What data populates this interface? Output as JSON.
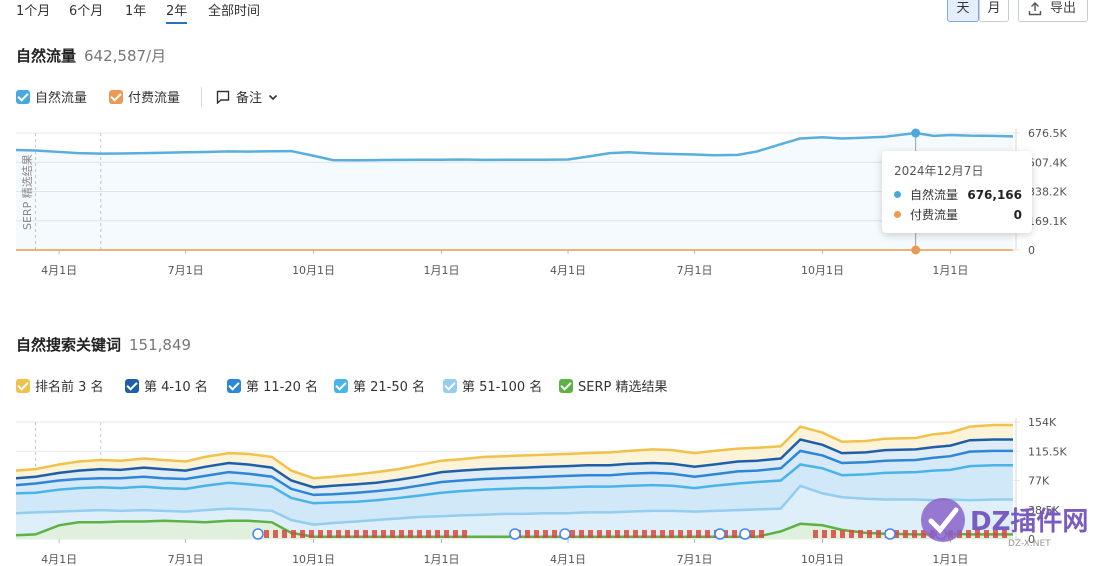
{
  "range_tabs": [
    "1个月",
    "6个月",
    "1年",
    "2年",
    "全部时间"
  ],
  "range_active": "2年",
  "granularity": {
    "day": "天",
    "month": "月",
    "active": "天"
  },
  "export_label": "导出",
  "organic": {
    "title": "自然流量",
    "value": "642,587/月",
    "legend": [
      {
        "label": "自然流量",
        "color": "#49a9de"
      },
      {
        "label": "付费流量",
        "color": "#ea9a52"
      }
    ],
    "notes_label": "备注",
    "serp_marker_label": "SERP 精选结果"
  },
  "tooltip": {
    "date": "2024年12月7日",
    "rows": [
      {
        "label": "自然流量",
        "value": "676,166",
        "color": "#49a9de"
      },
      {
        "label": "付费流量",
        "value": "0",
        "color": "#ea9a52"
      }
    ]
  },
  "keywords": {
    "title": "自然搜索关键词",
    "value": "151,849",
    "legend": [
      {
        "label": "排名前 3 名",
        "color": "#f0c24b"
      },
      {
        "label": "第 4-10 名",
        "color": "#1f5fa8"
      },
      {
        "label": "第 11-20 名",
        "color": "#2d86d6"
      },
      {
        "label": "第 21-50 名",
        "color": "#49b4e8"
      },
      {
        "label": "第 51-100 名",
        "color": "#93cdef"
      },
      {
        "label": "SERP 精选结果",
        "color": "#5cb245"
      }
    ]
  },
  "watermark": {
    "brand": "DZ插件网",
    "sub": "DZ-X.NET"
  },
  "chart_data": [
    {
      "type": "area",
      "x": [
        "2023-03-01",
        "2023-03-15",
        "2023-04-01",
        "2023-04-15",
        "2023-05-01",
        "2023-05-15",
        "2023-06-01",
        "2023-06-15",
        "2023-07-01",
        "2023-07-15",
        "2023-08-01",
        "2023-08-15",
        "2023-09-01",
        "2023-09-15",
        "2023-10-01",
        "2023-10-15",
        "2023-11-01",
        "2023-11-15",
        "2023-12-01",
        "2023-12-15",
        "2024-01-01",
        "2024-01-15",
        "2024-02-01",
        "2024-02-15",
        "2024-03-01",
        "2024-03-15",
        "2024-04-01",
        "2024-04-15",
        "2024-05-01",
        "2024-05-15",
        "2024-06-01",
        "2024-06-15",
        "2024-07-01",
        "2024-07-15",
        "2024-08-01",
        "2024-08-15",
        "2024-09-01",
        "2024-09-15",
        "2024-10-01",
        "2024-10-15",
        "2024-11-01",
        "2024-11-15",
        "2024-12-07",
        "2024-12-20",
        "2025-01-01",
        "2025-01-15",
        "2025-02-01",
        "2025-02-15"
      ],
      "series": [
        {
          "name": "自然流量",
          "values": [
            578000,
            575000,
            567000,
            560000,
            557000,
            558000,
            560000,
            562000,
            565000,
            567000,
            570000,
            569000,
            571000,
            572000,
            545000,
            520000,
            519000,
            520000,
            521000,
            522000,
            522000,
            523000,
            521000,
            522000,
            522000,
            522000,
            523000,
            540000,
            560000,
            565000,
            558000,
            555000,
            552000,
            548000,
            550000,
            570000,
            612000,
            645000,
            652000,
            645000,
            650000,
            655000,
            676166,
            660000,
            665000,
            661000,
            660000,
            657000
          ]
        },
        {
          "name": "付费流量",
          "values": [
            0,
            0,
            0,
            0,
            0,
            0,
            0,
            0,
            0,
            0,
            0,
            0,
            0,
            0,
            0,
            0,
            0,
            0,
            0,
            0,
            0,
            0,
            0,
            0,
            0,
            0,
            0,
            0,
            0,
            0,
            0,
            0,
            0,
            0,
            0,
            0,
            0,
            0,
            0,
            0,
            0,
            0,
            0,
            0,
            0,
            0,
            0,
            0
          ]
        }
      ],
      "y_ticks": [
        "676.5K",
        "507.4K",
        "338.2K",
        "169.1K",
        "0"
      ],
      "x_ticks": [
        "4月1日",
        "7月1日",
        "10月1日",
        "1月1日",
        "4月1日",
        "7月1日",
        "10月1日",
        "1月1日"
      ],
      "ylim": [
        0,
        676500
      ],
      "grid": true
    },
    {
      "type": "area",
      "x": [
        "2023-03-01",
        "2023-03-15",
        "2023-04-01",
        "2023-04-15",
        "2023-05-01",
        "2023-05-15",
        "2023-06-01",
        "2023-06-15",
        "2023-07-01",
        "2023-07-15",
        "2023-08-01",
        "2023-08-15",
        "2023-09-01",
        "2023-09-15",
        "2023-10-01",
        "2023-10-15",
        "2023-11-01",
        "2023-11-15",
        "2023-12-01",
        "2023-12-15",
        "2024-01-01",
        "2024-01-15",
        "2024-02-01",
        "2024-02-15",
        "2024-03-01",
        "2024-03-15",
        "2024-04-01",
        "2024-04-15",
        "2024-05-01",
        "2024-05-15",
        "2024-06-01",
        "2024-06-15",
        "2024-07-01",
        "2024-07-15",
        "2024-08-01",
        "2024-08-15",
        "2024-09-01",
        "2024-09-15",
        "2024-10-01",
        "2024-10-15",
        "2024-11-01",
        "2024-11-15",
        "2024-12-07",
        "2024-12-20",
        "2025-01-01",
        "2025-01-15",
        "2025-02-01",
        "2025-02-15"
      ],
      "series": [
        {
          "name": "排名前 3 名",
          "values": [
            90000,
            92000,
            98000,
            102000,
            104000,
            103000,
            106000,
            104000,
            102000,
            108000,
            113000,
            112000,
            108000,
            90000,
            80000,
            82000,
            85000,
            88000,
            92000,
            97000,
            103000,
            105000,
            108000,
            109000,
            110000,
            111000,
            112000,
            113000,
            114000,
            116000,
            118000,
            117000,
            113000,
            116000,
            119000,
            120000,
            122000,
            148000,
            140000,
            128000,
            129000,
            132000,
            133000,
            138000,
            140000,
            148000,
            150000,
            150000
          ]
        },
        {
          "name": "第 4-10 名",
          "values": [
            80000,
            82000,
            87000,
            90000,
            92000,
            91000,
            94000,
            92000,
            90000,
            95000,
            100000,
            98000,
            94000,
            77000,
            68000,
            70000,
            72000,
            74000,
            78000,
            82000,
            88000,
            90000,
            92000,
            93000,
            94000,
            95000,
            96000,
            97000,
            97000,
            99000,
            100000,
            99000,
            95000,
            98000,
            102000,
            103000,
            106000,
            131000,
            124000,
            113000,
            114000,
            117000,
            118000,
            121000,
            123000,
            130000,
            131000,
            131000
          ]
        },
        {
          "name": "第 11-20 名",
          "values": [
            71000,
            73000,
            77000,
            79000,
            80000,
            80000,
            82000,
            80000,
            79000,
            83000,
            88000,
            86000,
            82000,
            66000,
            58000,
            59000,
            61000,
            63000,
            66000,
            70000,
            75000,
            77000,
            79000,
            80000,
            81000,
            82000,
            83000,
            84000,
            84000,
            86000,
            87000,
            86000,
            82000,
            85000,
            89000,
            90000,
            93000,
            116000,
            110000,
            100000,
            101000,
            103000,
            104000,
            107000,
            109000,
            115000,
            116000,
            116000
          ]
        },
        {
          "name": "第 21-50 名",
          "values": [
            60000,
            61000,
            65000,
            67000,
            68000,
            67000,
            69000,
            67000,
            66000,
            70000,
            74000,
            72000,
            69000,
            54000,
            47000,
            48000,
            49000,
            51000,
            54000,
            57000,
            61000,
            63000,
            65000,
            66000,
            67000,
            67000,
            68000,
            69000,
            69000,
            70000,
            71000,
            70000,
            67000,
            70000,
            73000,
            75000,
            77000,
            98000,
            93000,
            84000,
            85000,
            87000,
            88000,
            90000,
            91000,
            96000,
            97000,
            97000
          ]
        },
        {
          "name": "第 51-100 名",
          "values": [
            34000,
            35000,
            36000,
            37000,
            38000,
            37000,
            38000,
            37000,
            36000,
            38000,
            40000,
            39000,
            37000,
            25000,
            19000,
            21000,
            23000,
            25000,
            27000,
            29000,
            30000,
            31000,
            32000,
            33000,
            33000,
            34000,
            34000,
            35000,
            35000,
            36000,
            37000,
            37000,
            36000,
            37000,
            38000,
            39000,
            40000,
            70000,
            60000,
            55000,
            53000,
            52000,
            52000,
            51000,
            52000,
            51000,
            52000,
            52000
          ]
        },
        {
          "name": "SERP 精选结果",
          "values": [
            5000,
            6000,
            18000,
            22000,
            22000,
            23000,
            23000,
            24000,
            23000,
            22000,
            24000,
            24000,
            22000,
            8000,
            3000,
            3000,
            3000,
            3000,
            3000,
            3000,
            3000,
            3000,
            3000,
            3000,
            3000,
            3000,
            3000,
            3000,
            3000,
            3000,
            3000,
            3000,
            3000,
            3000,
            3000,
            3000,
            10000,
            20000,
            18000,
            12000,
            8000,
            7000,
            6000,
            6000,
            7000,
            6000,
            6000,
            6000
          ]
        }
      ],
      "y_ticks": [
        "154K",
        "115.5K",
        "77K",
        "38.5K",
        "0"
      ],
      "x_ticks": [
        "4月1日",
        "7月1日",
        "10月1日",
        "1月1日",
        "4月1日",
        "7月1日",
        "10月1日",
        "1月1日"
      ],
      "ylim": [
        0,
        154000
      ],
      "grid": true
    }
  ]
}
